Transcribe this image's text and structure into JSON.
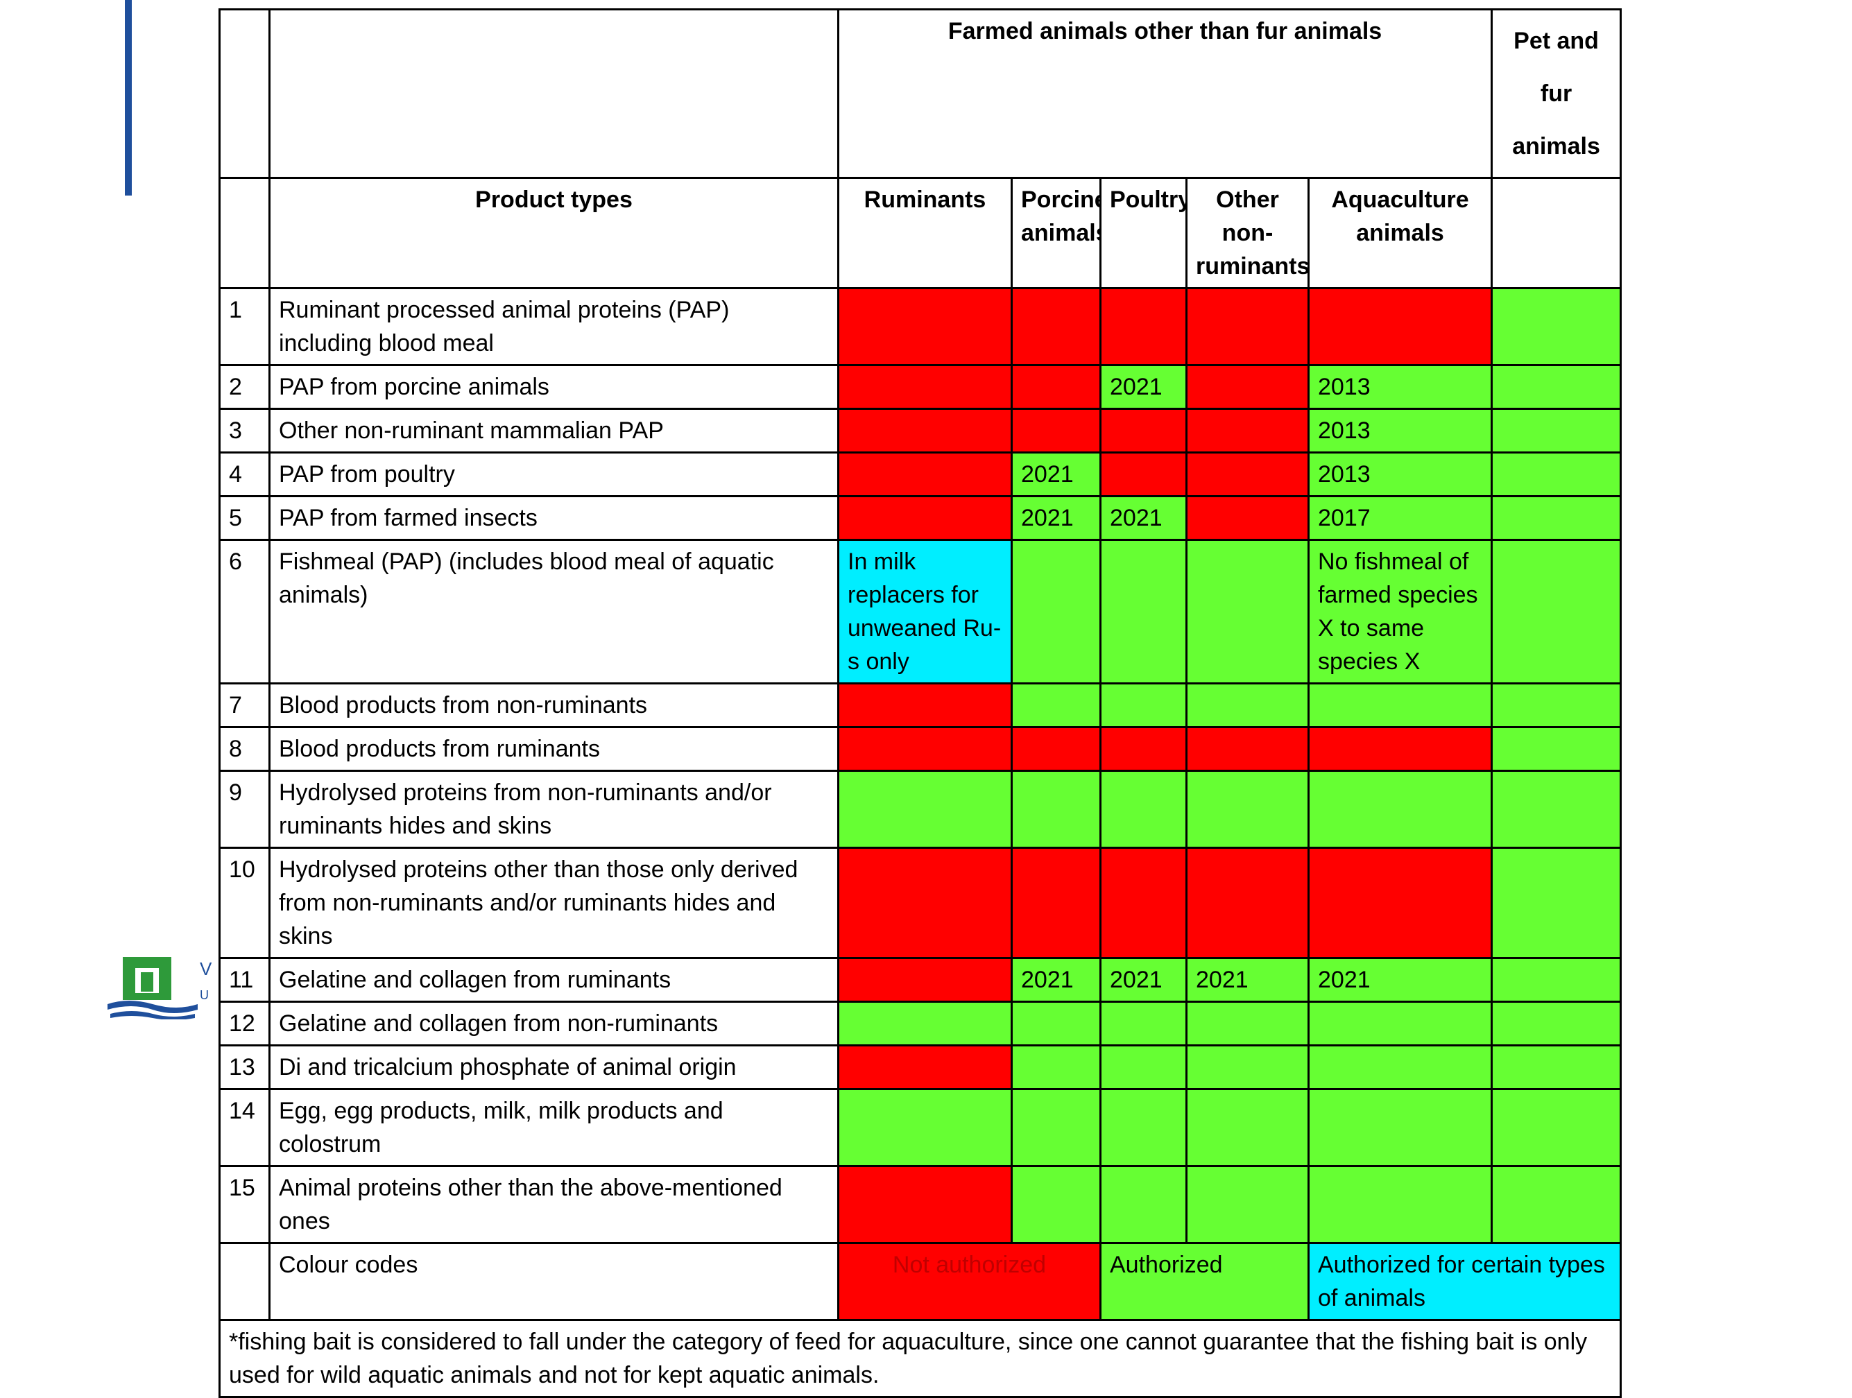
{
  "header": {
    "group_farmed": "Farmed animals other than fur animals",
    "group_pet": "Pet and fur animals",
    "product_types": "Product types",
    "columns": [
      "Ruminants",
      "Porcine animals",
      "Poultry",
      "Other non-ruminants",
      "Aquaculture animals"
    ]
  },
  "colors": {
    "red": "#ff0000",
    "green": "#66ff33",
    "cyan": "#00eeff"
  },
  "rows": [
    {
      "no": "1",
      "label": "Ruminant processed animal proteins (PAP) including blood meal",
      "cells": [
        {
          "color": "red",
          "text": ""
        },
        {
          "color": "red",
          "text": ""
        },
        {
          "color": "red",
          "text": ""
        },
        {
          "color": "red",
          "text": ""
        },
        {
          "color": "red",
          "text": ""
        },
        {
          "color": "green",
          "text": ""
        }
      ]
    },
    {
      "no": "2",
      "label": "PAP from porcine animals",
      "cells": [
        {
          "color": "red",
          "text": ""
        },
        {
          "color": "red",
          "text": ""
        },
        {
          "color": "green",
          "text": "2021"
        },
        {
          "color": "red",
          "text": ""
        },
        {
          "color": "green",
          "text": "2013"
        },
        {
          "color": "green",
          "text": ""
        }
      ]
    },
    {
      "no": "3",
      "label": "Other non-ruminant mammalian PAP",
      "cells": [
        {
          "color": "red",
          "text": ""
        },
        {
          "color": "red",
          "text": ""
        },
        {
          "color": "red",
          "text": ""
        },
        {
          "color": "red",
          "text": ""
        },
        {
          "color": "green",
          "text": "2013"
        },
        {
          "color": "green",
          "text": ""
        }
      ]
    },
    {
      "no": "4",
      "label": "PAP from poultry",
      "cells": [
        {
          "color": "red",
          "text": ""
        },
        {
          "color": "green",
          "text": "2021"
        },
        {
          "color": "red",
          "text": ""
        },
        {
          "color": "red",
          "text": ""
        },
        {
          "color": "green",
          "text": "2013"
        },
        {
          "color": "green",
          "text": ""
        }
      ]
    },
    {
      "no": "5",
      "label": "PAP from farmed insects",
      "cells": [
        {
          "color": "red",
          "text": ""
        },
        {
          "color": "green",
          "text": "2021"
        },
        {
          "color": "green",
          "text": "2021"
        },
        {
          "color": "red",
          "text": ""
        },
        {
          "color": "green",
          "text": "2017"
        },
        {
          "color": "green",
          "text": ""
        }
      ]
    },
    {
      "no": "6",
      "label": "Fishmeal (PAP) (includes blood meal of aquatic animals)",
      "cells": [
        {
          "color": "cyan",
          "text": "In milk replacers for unweaned Ru-s only"
        },
        {
          "color": "green",
          "text": ""
        },
        {
          "color": "green",
          "text": ""
        },
        {
          "color": "green",
          "text": ""
        },
        {
          "color": "green",
          "text": "No fishmeal of farmed species X to same species X"
        },
        {
          "color": "green",
          "text": ""
        }
      ]
    },
    {
      "no": "7",
      "label": "Blood products from non-ruminants",
      "cells": [
        {
          "color": "red",
          "text": ""
        },
        {
          "color": "green",
          "text": ""
        },
        {
          "color": "green",
          "text": ""
        },
        {
          "color": "green",
          "text": ""
        },
        {
          "color": "green",
          "text": ""
        },
        {
          "color": "green",
          "text": ""
        }
      ]
    },
    {
      "no": "8",
      "label": "Blood products from ruminants",
      "cells": [
        {
          "color": "red",
          "text": ""
        },
        {
          "color": "red",
          "text": ""
        },
        {
          "color": "red",
          "text": ""
        },
        {
          "color": "red",
          "text": ""
        },
        {
          "color": "red",
          "text": ""
        },
        {
          "color": "green",
          "text": ""
        }
      ]
    },
    {
      "no": "9",
      "label": "Hydrolysed proteins from non-ruminants and/or ruminants hides and skins",
      "cells": [
        {
          "color": "green",
          "text": ""
        },
        {
          "color": "green",
          "text": ""
        },
        {
          "color": "green",
          "text": ""
        },
        {
          "color": "green",
          "text": ""
        },
        {
          "color": "green",
          "text": ""
        },
        {
          "color": "green",
          "text": ""
        }
      ]
    },
    {
      "no": "10",
      "label": "Hydrolysed proteins other than those only derived from non-ruminants and/or ruminants hides and skins",
      "cells": [
        {
          "color": "red",
          "text": ""
        },
        {
          "color": "red",
          "text": ""
        },
        {
          "color": "red",
          "text": ""
        },
        {
          "color": "red",
          "text": ""
        },
        {
          "color": "red",
          "text": ""
        },
        {
          "color": "green",
          "text": ""
        }
      ]
    },
    {
      "no": "11",
      "label": "Gelatine and collagen from ruminants",
      "cells": [
        {
          "color": "red",
          "text": ""
        },
        {
          "color": "green",
          "text": "2021"
        },
        {
          "color": "green",
          "text": "2021"
        },
        {
          "color": "green",
          "text": "2021"
        },
        {
          "color": "green",
          "text": "2021"
        },
        {
          "color": "green",
          "text": ""
        }
      ]
    },
    {
      "no": "12",
      "label": "Gelatine and collagen from non-ruminants",
      "cells": [
        {
          "color": "green",
          "text": ""
        },
        {
          "color": "green",
          "text": ""
        },
        {
          "color": "green",
          "text": ""
        },
        {
          "color": "green",
          "text": ""
        },
        {
          "color": "green",
          "text": ""
        },
        {
          "color": "green",
          "text": ""
        }
      ]
    },
    {
      "no": "13",
      "label": "Di and tricalcium phosphate of animal origin",
      "cells": [
        {
          "color": "red",
          "text": ""
        },
        {
          "color": "green",
          "text": ""
        },
        {
          "color": "green",
          "text": ""
        },
        {
          "color": "green",
          "text": ""
        },
        {
          "color": "green",
          "text": ""
        },
        {
          "color": "green",
          "text": ""
        }
      ]
    },
    {
      "no": "14",
      "label": "Egg, egg products, milk, milk products and colostrum",
      "cells": [
        {
          "color": "green",
          "text": ""
        },
        {
          "color": "green",
          "text": ""
        },
        {
          "color": "green",
          "text": ""
        },
        {
          "color": "green",
          "text": ""
        },
        {
          "color": "green",
          "text": ""
        },
        {
          "color": "green",
          "text": ""
        }
      ]
    },
    {
      "no": "15",
      "label": "Animal proteins other than the above-mentioned ones",
      "cells": [
        {
          "color": "red",
          "text": ""
        },
        {
          "color": "green",
          "text": ""
        },
        {
          "color": "green",
          "text": ""
        },
        {
          "color": "green",
          "text": ""
        },
        {
          "color": "green",
          "text": ""
        },
        {
          "color": "green",
          "text": ""
        }
      ]
    }
  ],
  "legend": {
    "label": "Colour codes",
    "not_authorized": "Not authorized",
    "authorized": "Authorized",
    "certain_types": "Authorized for certain types of animals"
  },
  "footnote": "*fishing bait is considered to fall under the category of feed for aquaculture, since one cannot guarantee that the fishing bait is only used for wild aquatic animals and not for kept aquatic animals.",
  "logo": {
    "name": "university-logo-icon",
    "text_lines": [
      "V",
      "U"
    ]
  }
}
